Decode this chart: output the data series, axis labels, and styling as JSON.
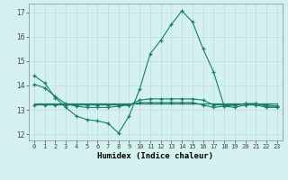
{
  "x": [
    0,
    1,
    2,
    3,
    4,
    5,
    6,
    7,
    8,
    9,
    10,
    11,
    12,
    13,
    14,
    15,
    16,
    17,
    18,
    19,
    20,
    21,
    22,
    23
  ],
  "line1": [
    14.4,
    14.1,
    13.5,
    13.1,
    12.75,
    12.6,
    12.55,
    12.45,
    12.05,
    12.75,
    13.85,
    15.3,
    15.85,
    16.5,
    17.05,
    16.6,
    15.5,
    14.55,
    13.15,
    13.1,
    13.2,
    13.2,
    13.1,
    13.1
  ],
  "line2": [
    14.05,
    13.9,
    13.55,
    13.25,
    13.15,
    13.1,
    13.1,
    13.1,
    13.15,
    13.2,
    13.4,
    13.45,
    13.45,
    13.45,
    13.45,
    13.45,
    13.4,
    13.2,
    13.2,
    13.2,
    13.25,
    13.25,
    13.2,
    13.15
  ],
  "line3": [
    13.25,
    13.25,
    13.25,
    13.25,
    13.25,
    13.25,
    13.25,
    13.25,
    13.25,
    13.25,
    13.25,
    13.25,
    13.25,
    13.25,
    13.25,
    13.25,
    13.25,
    13.25,
    13.25,
    13.25,
    13.25,
    13.25,
    13.25,
    13.25
  ],
  "line4": [
    13.2,
    13.2,
    13.2,
    13.2,
    13.2,
    13.2,
    13.2,
    13.2,
    13.2,
    13.2,
    13.3,
    13.3,
    13.3,
    13.3,
    13.3,
    13.3,
    13.2,
    13.1,
    13.15,
    13.2,
    13.25,
    13.25,
    13.15,
    13.15
  ],
  "line_color": "#1a7a6e",
  "bg_color": "#d4f0ef",
  "grid_color": "#b8e0de",
  "xlabel": "Humidex (Indice chaleur)",
  "ylim": [
    11.75,
    17.35
  ],
  "xlim": [
    -0.5,
    23.5
  ],
  "yticks": [
    12,
    13,
    14,
    15,
    16,
    17
  ],
  "xticks": [
    0,
    1,
    2,
    3,
    4,
    5,
    6,
    7,
    8,
    9,
    10,
    11,
    12,
    13,
    14,
    15,
    16,
    17,
    18,
    19,
    20,
    21,
    22,
    23
  ]
}
